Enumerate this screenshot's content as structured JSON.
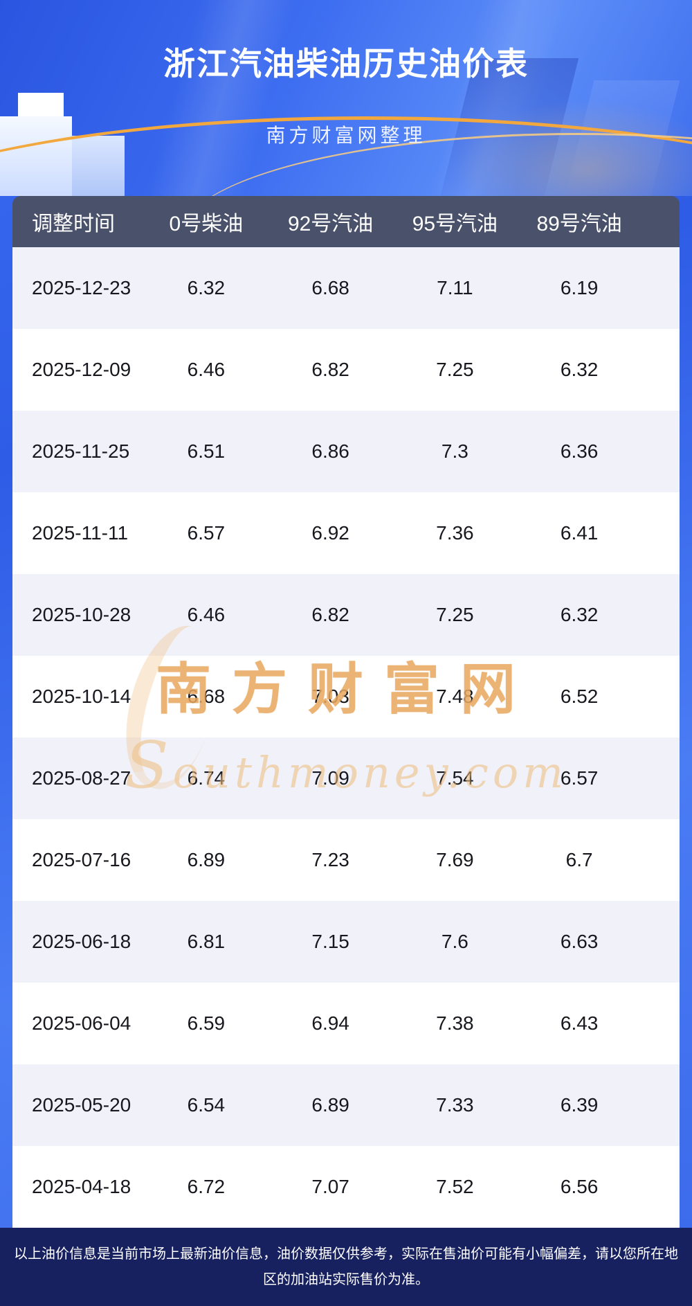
{
  "header": {
    "title": "浙江汽油柴油历史油价表",
    "subtitle": "南方财富网整理"
  },
  "table": {
    "columns": [
      "调整时间",
      "0号柴油",
      "92号汽油",
      "95号汽油",
      "89号汽油"
    ],
    "rows": [
      {
        "date": "2025-12-23",
        "values": [
          "6.32",
          "6.68",
          "7.11",
          "6.19"
        ]
      },
      {
        "date": "2025-12-09",
        "values": [
          "6.46",
          "6.82",
          "7.25",
          "6.32"
        ]
      },
      {
        "date": "2025-11-25",
        "values": [
          "6.51",
          "6.86",
          "7.3",
          "6.36"
        ]
      },
      {
        "date": "2025-11-11",
        "values": [
          "6.57",
          "6.92",
          "7.36",
          "6.41"
        ]
      },
      {
        "date": "2025-10-28",
        "values": [
          "6.46",
          "6.82",
          "7.25",
          "6.32"
        ]
      },
      {
        "date": "2025-10-14",
        "values": [
          "6.68",
          "7.03",
          "7.48",
          "6.52"
        ]
      },
      {
        "date": "2025-08-27",
        "values": [
          "6.74",
          "7.09",
          "7.54",
          "6.57"
        ]
      },
      {
        "date": "2025-07-16",
        "values": [
          "6.89",
          "7.23",
          "7.69",
          "6.7"
        ]
      },
      {
        "date": "2025-06-18",
        "values": [
          "6.81",
          "7.15",
          "7.6",
          "6.63"
        ]
      },
      {
        "date": "2025-06-04",
        "values": [
          "6.59",
          "6.94",
          "7.38",
          "6.43"
        ]
      },
      {
        "date": "2025-05-20",
        "values": [
          "6.54",
          "6.89",
          "7.33",
          "6.39"
        ]
      },
      {
        "date": "2025-04-18",
        "values": [
          "6.72",
          "7.07",
          "7.52",
          "6.56"
        ]
      }
    ]
  },
  "watermark": {
    "cn": "南方财富网",
    "en": "Southmoney.com"
  },
  "footer": {
    "text": "以上油价信息是当前市场上最新油价信息，油价数据仅供参考，实际在售油价可能有小幅偏差，请以您所在地区的加油站实际售价为准。"
  },
  "colors": {
    "background_blue": "#3a6cf2",
    "table_header": "#4a516a",
    "row_alt": "#f0f1f9",
    "footer_bg": "#18215f",
    "gold_accent": "#f2a83e",
    "watermark_gold": "#e7a65e"
  }
}
